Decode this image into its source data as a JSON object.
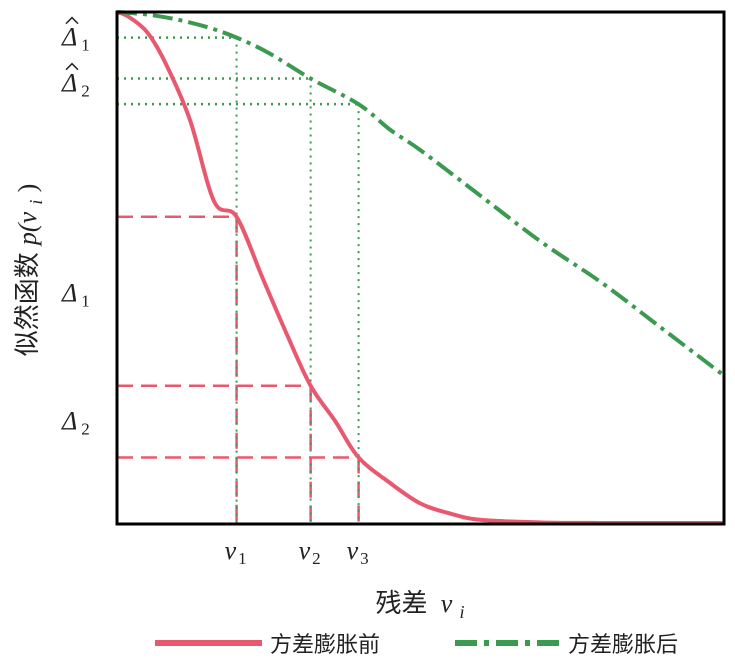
{
  "chart_data": {
    "type": "line",
    "xlabel_main": "残差",
    "xlabel_var": "v",
    "xlabel_sub": "i",
    "ylabel_main": "似然函数",
    "ylabel_func": "p(v",
    "ylabel_sub": "i",
    "ylabel_close": ")",
    "xlim": [
      0,
      1
    ],
    "ylim": [
      0,
      1
    ],
    "grid": false,
    "legend_position": "bottom",
    "x_markers": [
      {
        "label": "v",
        "sub": "1",
        "x": 0.197
      },
      {
        "label": "v",
        "sub": "2",
        "x": 0.319
      },
      {
        "label": "v",
        "sub": "3",
        "x": 0.398
      }
    ],
    "delta_labels": [
      {
        "symbol": "Δ",
        "sub": "1",
        "hat": false,
        "y": 0.45
      },
      {
        "symbol": "Δ",
        "sub": "2",
        "hat": false,
        "y": 0.2
      },
      {
        "symbol": "Δ",
        "sub": "1",
        "hat": true,
        "y": 0.95
      },
      {
        "symbol": "Δ",
        "sub": "2",
        "hat": true,
        "y": 0.86
      }
    ],
    "series": [
      {
        "name": "方差膨胀前",
        "color": "#e8586f",
        "style": "solid",
        "x": [
          0,
          0.02,
          0.05,
          0.08,
          0.12,
          0.16,
          0.197,
          0.24,
          0.28,
          0.319,
          0.36,
          0.398,
          0.45,
          0.5,
          0.55,
          0.6,
          0.7,
          0.8,
          0.9,
          1.0
        ],
        "y": [
          1.0,
          0.99,
          0.96,
          0.9,
          0.79,
          0.63,
          0.6,
          0.48,
          0.37,
          0.27,
          0.2,
          0.13,
          0.08,
          0.04,
          0.02,
          0.008,
          0.003,
          0.002,
          0.002,
          0.002
        ]
      },
      {
        "name": "方差膨胀后",
        "color": "#3a9a4f",
        "style": "dashdot",
        "x": [
          0,
          0.05,
          0.1,
          0.15,
          0.197,
          0.25,
          0.319,
          0.398,
          0.45,
          0.5,
          0.6,
          0.7,
          0.8,
          0.9,
          1.0
        ],
        "y": [
          1.0,
          0.995,
          0.985,
          0.97,
          0.95,
          0.92,
          0.87,
          0.82,
          0.77,
          0.73,
          0.64,
          0.55,
          0.47,
          0.38,
          0.29
        ]
      }
    ],
    "projections": [
      {
        "x": 0.197,
        "y_before": 0.6,
        "y_after": 0.95
      },
      {
        "x": 0.319,
        "y_before": 0.27,
        "y_after": 0.87
      },
      {
        "x": 0.398,
        "y_before": 0.13,
        "y_after": 0.82
      }
    ],
    "axis_colors": {
      "frame": "#000000",
      "text": "#222222"
    }
  }
}
